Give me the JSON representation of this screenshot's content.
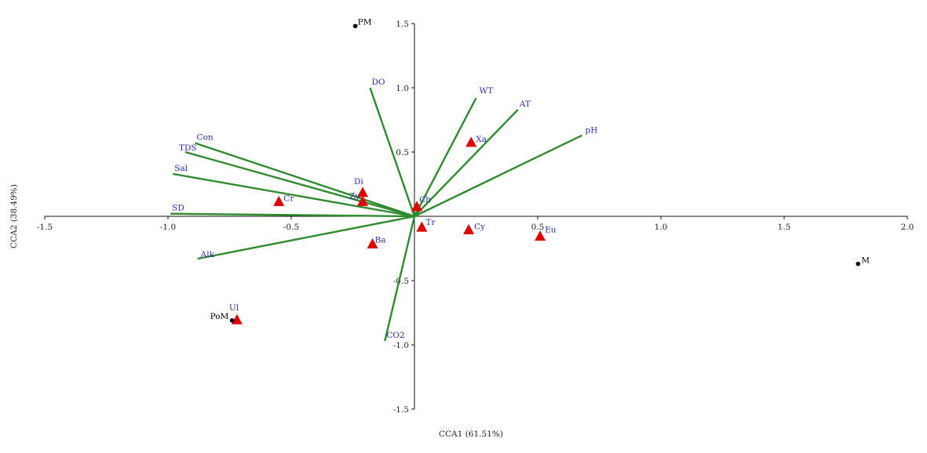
{
  "chart_data": {
    "type": "scatter",
    "title": "",
    "xlabel": "CCA1 (61.51%)",
    "ylabel": "CCA2 (38.49%)",
    "xlim": [
      -1.5,
      2.0
    ],
    "ylim": [
      -1.5,
      1.5
    ],
    "x_ticks": [
      "-1.5",
      "-1.0",
      "-0.5",
      "0.5",
      "1.0",
      "1.5",
      "2.0"
    ],
    "y_ticks": [
      "1.5",
      "1.0",
      "0.5",
      "-0.5",
      "-1.0",
      "-1.5"
    ],
    "grid": false,
    "environmental_vectors": [
      {
        "label": "DO",
        "x": -0.18,
        "y": 1.0
      },
      {
        "label": "WT",
        "x": 0.25,
        "y": 0.92
      },
      {
        "label": "AT",
        "x": 0.42,
        "y": 0.83
      },
      {
        "label": "pH",
        "x": 0.68,
        "y": 0.63
      },
      {
        "label": "Con",
        "x": -0.89,
        "y": 0.57
      },
      {
        "label": "TDS",
        "x": -0.93,
        "y": 0.5
      },
      {
        "label": "Sal",
        "x": -0.98,
        "y": 0.33
      },
      {
        "label": "SD",
        "x": -0.99,
        "y": 0.02
      },
      {
        "label": "Alk",
        "x": -0.88,
        "y": -0.33
      },
      {
        "label": "CO2",
        "x": -0.12,
        "y": -0.97
      }
    ],
    "species": [
      {
        "label": "Xa",
        "x": 0.23,
        "y": 0.58
      },
      {
        "label": "Di",
        "x": -0.21,
        "y": 0.19
      },
      {
        "label": "Zy",
        "x": -0.21,
        "y": 0.12
      },
      {
        "label": "Cr",
        "x": -0.55,
        "y": 0.12
      },
      {
        "label": "Ch",
        "x": 0.01,
        "y": 0.08
      },
      {
        "label": "Tr",
        "x": 0.03,
        "y": -0.08
      },
      {
        "label": "Cy",
        "x": 0.22,
        "y": -0.1
      },
      {
        "label": "Eu",
        "x": 0.51,
        "y": -0.15
      },
      {
        "label": "Ba",
        "x": -0.17,
        "y": -0.21
      },
      {
        "label": "Ul",
        "x": -0.72,
        "y": -0.8
      }
    ],
    "sites": [
      {
        "label": "PM",
        "x": -0.24,
        "y": 1.48
      },
      {
        "label": "M",
        "x": 1.8,
        "y": -0.37
      },
      {
        "label": "PoM",
        "x": -0.74,
        "y": -0.81
      }
    ],
    "colors": {
      "vector": "#2e8b2e",
      "vector_label": "#2b2bb0",
      "species_marker": "#e00000",
      "species_label": "#2b2bb0",
      "site_marker": "#000000",
      "site_label": "#000000"
    }
  }
}
